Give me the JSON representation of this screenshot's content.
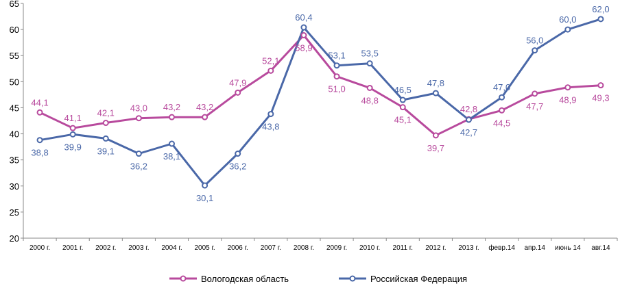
{
  "chart_data": {
    "type": "line",
    "categories": [
      "2000 г.",
      "2001 г.",
      "2002 г.",
      "2003 г.",
      "2004 г.",
      "2005 г.",
      "2006 г.",
      "2007 г.",
      "2008 г.",
      "2009 г.",
      "2010 г.",
      "2011 г.",
      "2012 г.",
      "2013 г.",
      "февр.14",
      "апр.14",
      "июнь 14",
      "авг.14"
    ],
    "series": [
      {
        "name": "Вологодская область",
        "color": "#b84a9d",
        "values": [
          44.1,
          41.1,
          42.1,
          43.0,
          43.2,
          43.2,
          47.9,
          52.1,
          58.9,
          51.0,
          48.8,
          45.1,
          39.7,
          42.8,
          44.5,
          47.7,
          48.9,
          49.3
        ],
        "labels": [
          "44,1",
          "41,1",
          "42,1",
          "43,0",
          "43,2",
          "43,2",
          "47,9",
          "52,1",
          "58,9",
          "51,0",
          "48,8",
          "45,1",
          "39,7",
          "42,8",
          "44,5",
          "47,7",
          "48,9",
          "49,3"
        ]
      },
      {
        "name": "Российская Федерация",
        "color": "#4a68a8",
        "values": [
          38.8,
          39.9,
          39.1,
          36.2,
          38.1,
          30.1,
          36.2,
          43.8,
          60.4,
          53.1,
          53.5,
          46.5,
          47.8,
          42.7,
          47.0,
          56.0,
          60.0,
          62.0
        ],
        "labels": [
          "38,8",
          "39,9",
          "39,1",
          "36,2",
          "38,1",
          "30,1",
          "36,2",
          "43,8",
          "60,4",
          "53,1",
          "53,5",
          "46,5",
          "47,8",
          "42,7",
          "47,0",
          "56,0",
          "60,0",
          "62,0"
        ]
      }
    ],
    "ylim": [
      20,
      65
    ],
    "yticks": [
      "20",
      "25",
      "30",
      "35",
      "40",
      "45",
      "50",
      "55",
      "60",
      "65"
    ],
    "legend_position": "bottom",
    "grid": false
  }
}
